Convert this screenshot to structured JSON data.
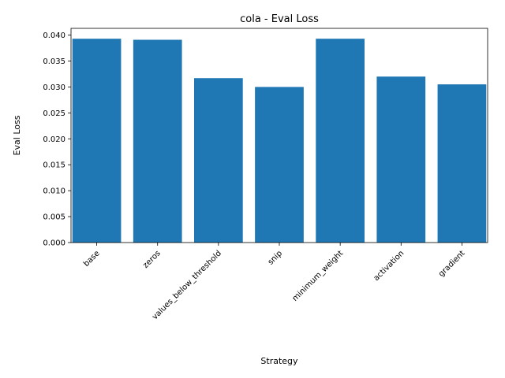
{
  "chart_data": {
    "type": "bar",
    "title": "cola - Eval Loss",
    "xlabel": "Strategy",
    "ylabel": "Eval Loss",
    "categories": [
      "base",
      "zeros",
      "values_below_threshold",
      "snip",
      "minimum_weight",
      "activation",
      "gradient"
    ],
    "values": [
      0.0393,
      0.0391,
      0.0317,
      0.03,
      0.0393,
      0.032,
      0.0305
    ],
    "ylim": [
      0,
      0.0413
    ],
    "yticks": [
      "0.000",
      "0.005",
      "0.010",
      "0.015",
      "0.020",
      "0.025",
      "0.030",
      "0.035",
      "0.040"
    ],
    "grid": false,
    "bar_color": "#1f77b4"
  }
}
